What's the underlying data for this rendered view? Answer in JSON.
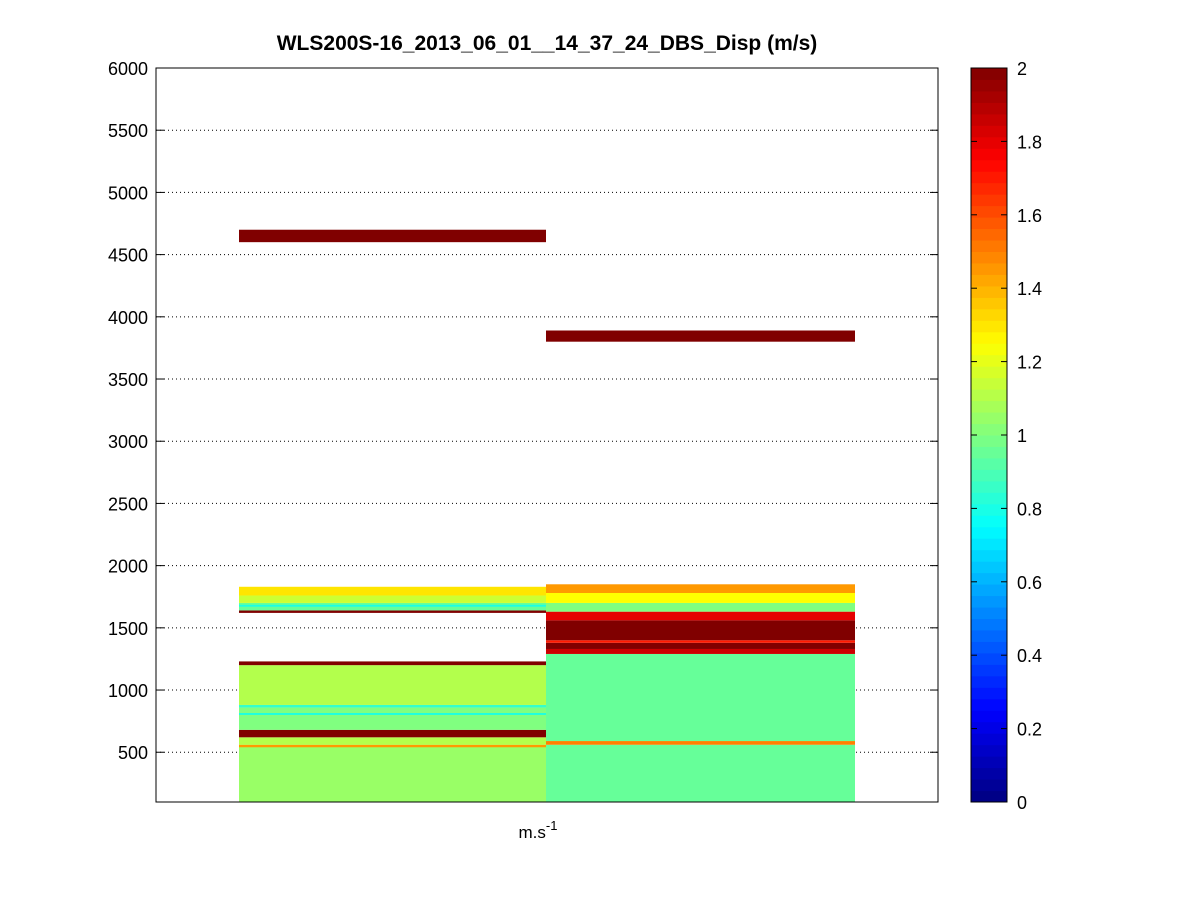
{
  "chart_data": {
    "type": "heatmap",
    "title": "WLS200S-16_2013_06_01__14_37_24_DBS_Disp (m/s)",
    "xlabel_main": "m.s",
    "xlabel_sup": "-1",
    "ylabel": "",
    "ylim": [
      100,
      6000
    ],
    "y_ticks": [
      "500",
      "1000",
      "1500",
      "2000",
      "2500",
      "3000",
      "3500",
      "4000",
      "4500",
      "5000",
      "5500",
      "6000"
    ],
    "grid": "horizontal dotted",
    "colormap": "jet",
    "clim": [
      0,
      2
    ],
    "colorbar_ticks": [
      "0",
      "0.2",
      "0.4",
      "0.6",
      "0.8",
      "1",
      "1.2",
      "1.4",
      "1.6",
      "1.8",
      "2"
    ],
    "columns": [
      {
        "cells": [
          {
            "y0": 100,
            "y1": 560,
            "v": 1.05
          },
          {
            "y0": 540,
            "y1": 560,
            "v": 1.45
          },
          {
            "y0": 560,
            "y1": 620,
            "v": 1.1
          },
          {
            "y0": 620,
            "y1": 680,
            "v": 2.0
          },
          {
            "y0": 680,
            "y1": 860,
            "v": 1.0
          },
          {
            "y0": 800,
            "y1": 815,
            "v": 0.8
          },
          {
            "y0": 860,
            "y1": 880,
            "v": 0.85
          },
          {
            "y0": 880,
            "y1": 1200,
            "v": 1.1
          },
          {
            "y0": 1200,
            "y1": 1230,
            "v": 2.0
          },
          {
            "y0": 1620,
            "y1": 1640,
            "v": 2.0
          },
          {
            "y0": 1640,
            "y1": 1700,
            "v": 0.95
          },
          {
            "y0": 1670,
            "y1": 1685,
            "v": 0.8
          },
          {
            "y0": 1700,
            "y1": 1760,
            "v": 1.15
          },
          {
            "y0": 1760,
            "y1": 1830,
            "v": 1.3
          },
          {
            "y0": 4600,
            "y1": 4700,
            "v": 2.0
          }
        ]
      },
      {
        "cells": [
          {
            "y0": 100,
            "y1": 560,
            "v": 0.95
          },
          {
            "y0": 560,
            "y1": 590,
            "v": 1.5
          },
          {
            "y0": 590,
            "y1": 1290,
            "v": 0.95
          },
          {
            "y0": 1290,
            "y1": 1330,
            "v": 1.85
          },
          {
            "y0": 1330,
            "y1": 1380,
            "v": 2.0
          },
          {
            "y0": 1380,
            "y1": 1400,
            "v": 1.7
          },
          {
            "y0": 1400,
            "y1": 1560,
            "v": 2.0
          },
          {
            "y0": 1560,
            "y1": 1630,
            "v": 1.8
          },
          {
            "y0": 1630,
            "y1": 1700,
            "v": 1.0
          },
          {
            "y0": 1700,
            "y1": 1780,
            "v": 1.25
          },
          {
            "y0": 1780,
            "y1": 1850,
            "v": 1.45
          },
          {
            "y0": 3800,
            "y1": 3890,
            "v": 2.0
          }
        ]
      }
    ]
  }
}
